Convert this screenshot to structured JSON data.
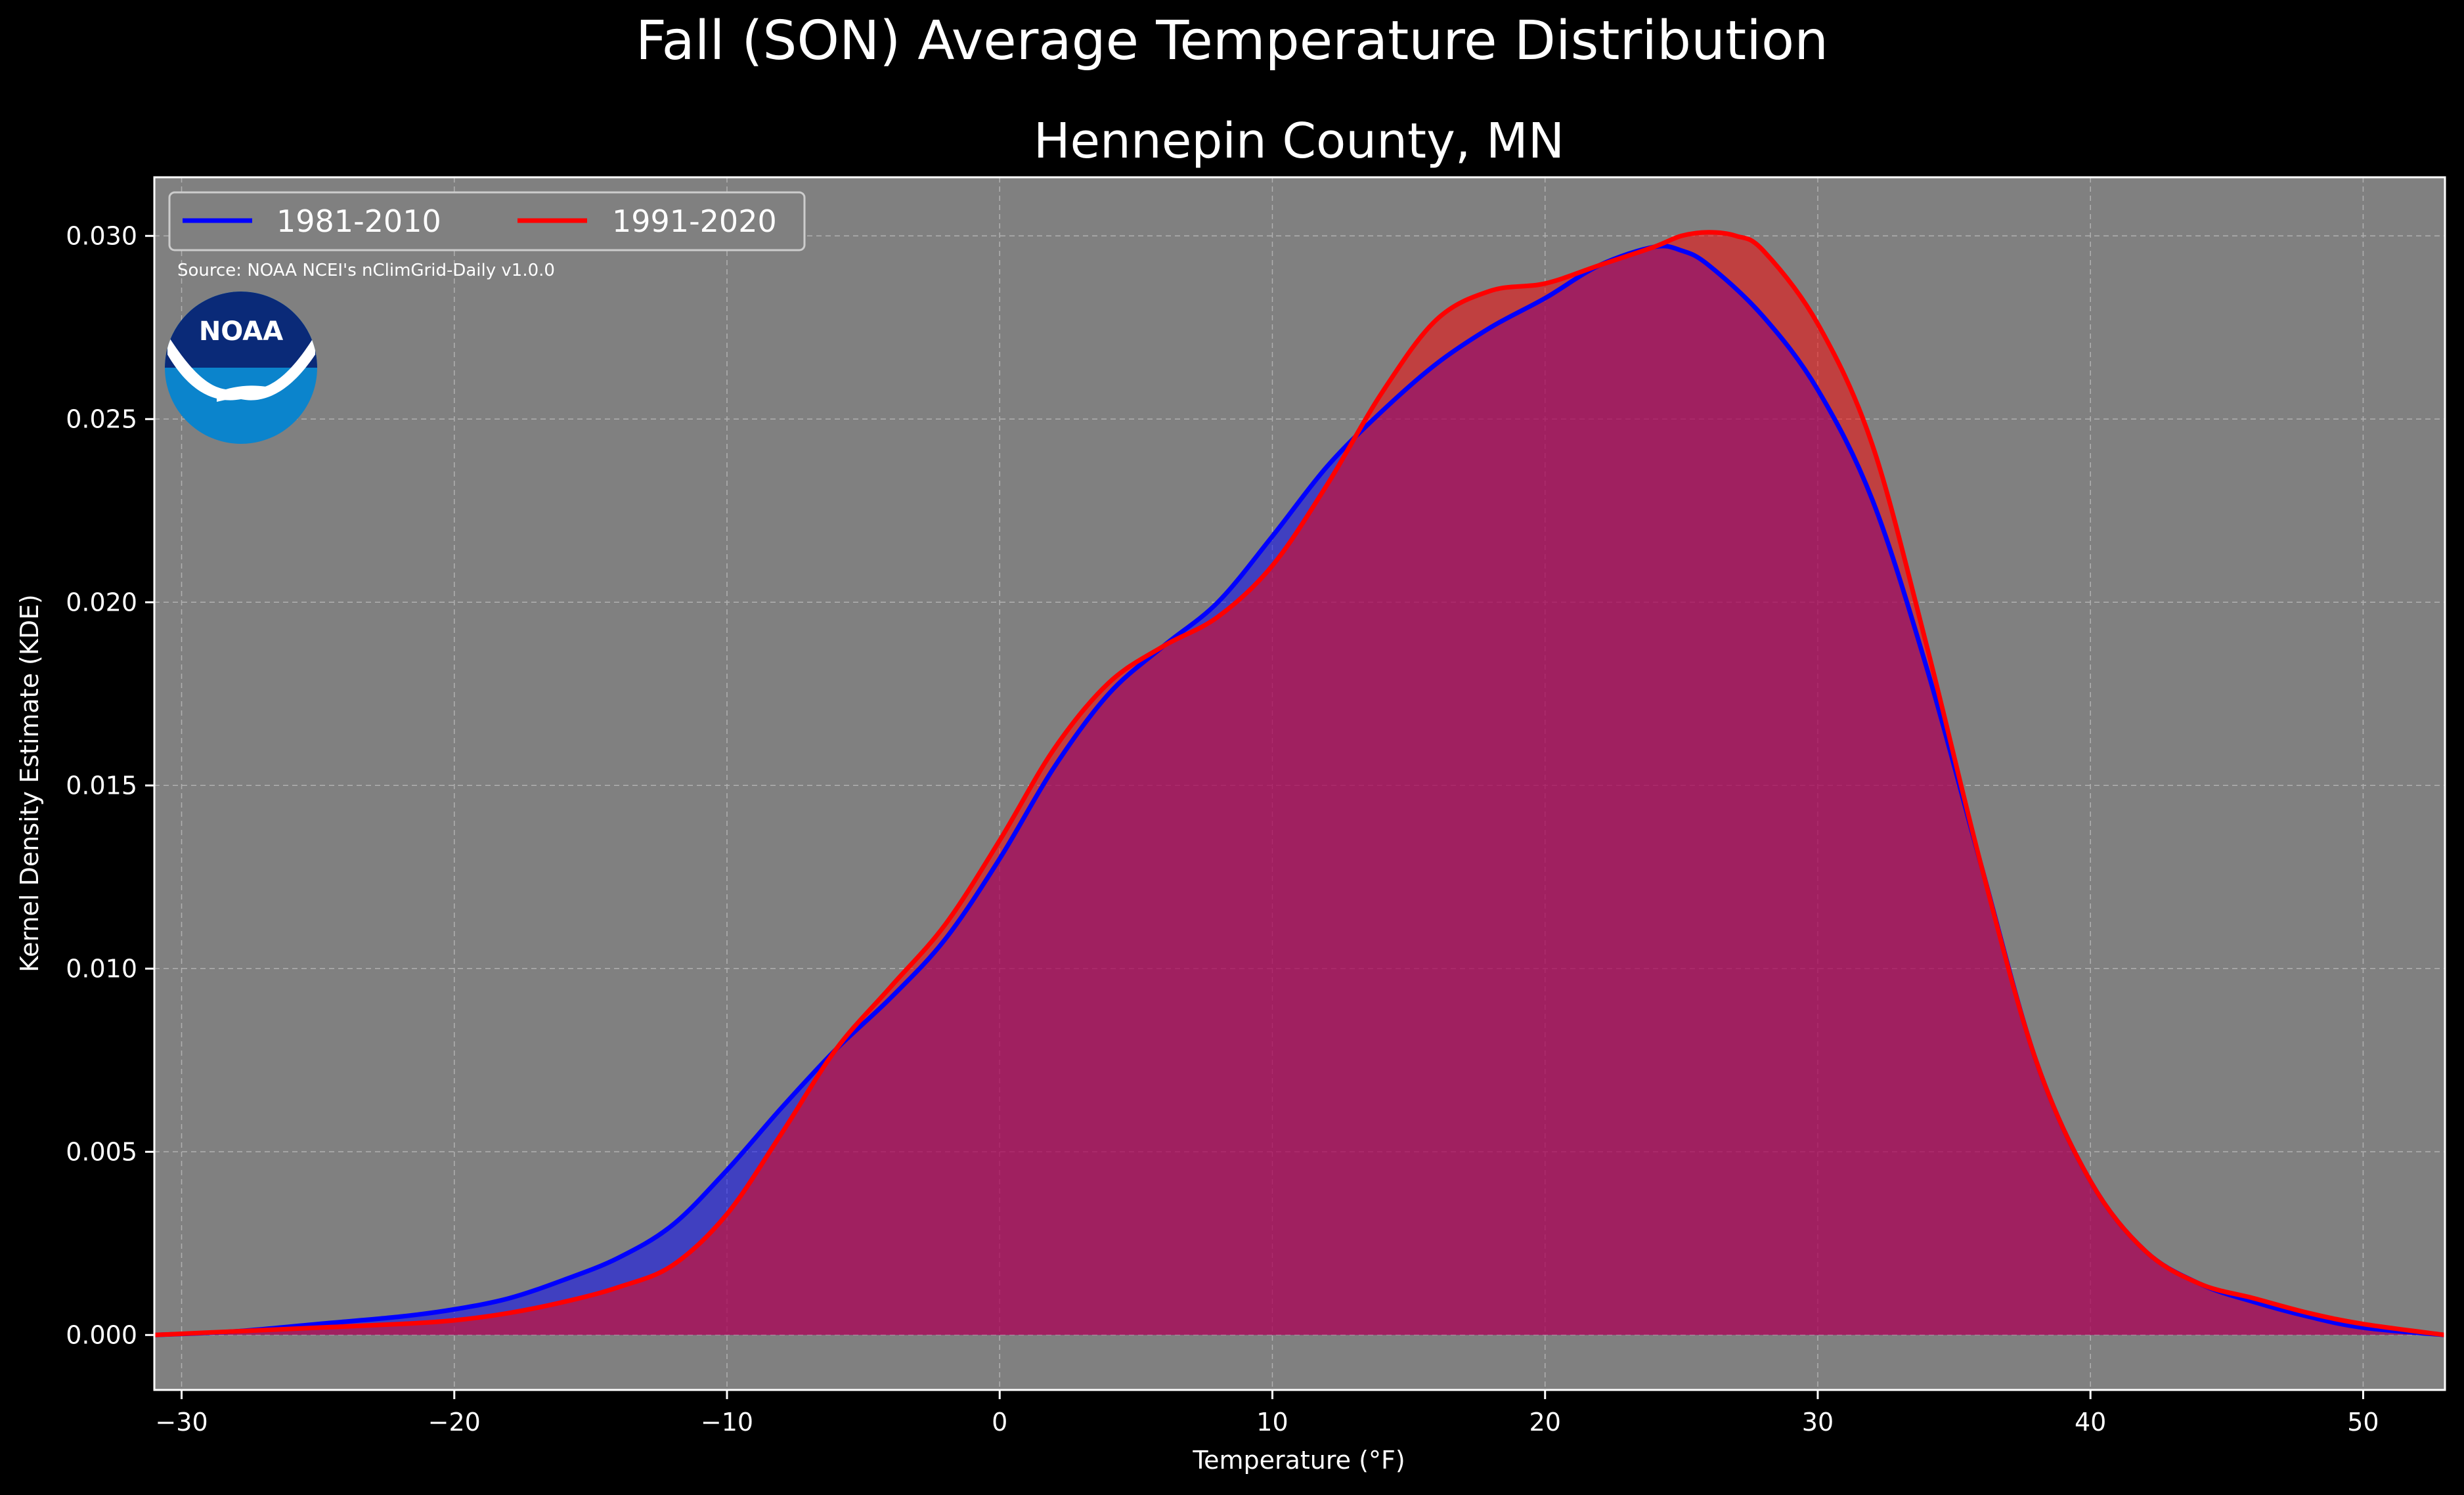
{
  "figure": {
    "suptitle": "Fall (SON) Average Temperature Distribution",
    "source": "Source: NOAA NCEI's nClimGrid-Daily v1.0.0",
    "logo_text": "NOAA",
    "background_color": "#000000",
    "plot_background_color": "#808080"
  },
  "chart_data": {
    "type": "area",
    "title": "Hennepin County, MN",
    "xlabel": "Temperature (°F)",
    "ylabel": "Kernel Density Estimate (KDE)",
    "xlim": [
      -31,
      53
    ],
    "ylim": [
      -0.0015,
      0.0316
    ],
    "xticks": [
      "−30",
      "−20",
      "−10",
      "0",
      "10",
      "20",
      "30",
      "40",
      "50"
    ],
    "xtick_values": [
      -30,
      -20,
      -10,
      0,
      10,
      20,
      30,
      40,
      50
    ],
    "yticks": [
      "0.000",
      "0.005",
      "0.010",
      "0.015",
      "0.020",
      "0.025",
      "0.030"
    ],
    "ytick_values": [
      0,
      0.005,
      0.01,
      0.015,
      0.02,
      0.025,
      0.03
    ],
    "grid": true,
    "legend_position": "top-left",
    "series": [
      {
        "name": "1981-2010",
        "color": "#0000ff",
        "x": [
          -31,
          -28,
          -25,
          -22,
          -20,
          -18,
          -16,
          -14,
          -12,
          -10,
          -8,
          -6,
          -4,
          -2,
          0,
          2,
          4,
          6,
          8,
          10,
          12,
          14,
          16,
          18,
          20,
          22,
          24,
          25,
          26,
          28,
          30,
          32,
          34,
          36,
          38,
          40,
          42,
          44,
          46,
          48,
          50,
          53
        ],
        "y": [
          0.0,
          0.0001,
          0.0003,
          0.0005,
          0.0007,
          0.001,
          0.0015,
          0.0021,
          0.003,
          0.0045,
          0.0062,
          0.0078,
          0.0092,
          0.0108,
          0.013,
          0.0155,
          0.0175,
          0.0188,
          0.02,
          0.0218,
          0.0237,
          0.0252,
          0.0265,
          0.0275,
          0.0283,
          0.0292,
          0.0297,
          0.0296,
          0.0292,
          0.0278,
          0.0258,
          0.0228,
          0.0182,
          0.0128,
          0.0075,
          0.0042,
          0.0023,
          0.0014,
          0.0009,
          0.0005,
          0.0002,
          0.0
        ]
      },
      {
        "name": "1991-2020",
        "color": "#ff0000",
        "x": [
          -31,
          -28,
          -25,
          -22,
          -20,
          -18,
          -16,
          -14,
          -12,
          -10,
          -8,
          -6,
          -4,
          -2,
          0,
          2,
          4,
          6,
          8,
          10,
          12,
          14,
          16,
          18,
          20,
          22,
          24,
          25,
          26,
          27,
          28,
          30,
          32,
          34,
          36,
          38,
          40,
          42,
          44,
          46,
          48,
          50,
          53
        ],
        "y": [
          0.0,
          0.0001,
          0.0002,
          0.0003,
          0.0004,
          0.0006,
          0.0009,
          0.0013,
          0.0019,
          0.0033,
          0.0055,
          0.0078,
          0.0095,
          0.0112,
          0.0135,
          0.016,
          0.0178,
          0.0188,
          0.0196,
          0.021,
          0.0232,
          0.0257,
          0.0277,
          0.0285,
          0.0287,
          0.0292,
          0.0297,
          0.03,
          0.0301,
          0.03,
          0.0296,
          0.0276,
          0.0243,
          0.0188,
          0.0128,
          0.0075,
          0.0042,
          0.0023,
          0.0014,
          0.001,
          0.0006,
          0.0003,
          0.0
        ]
      }
    ]
  }
}
